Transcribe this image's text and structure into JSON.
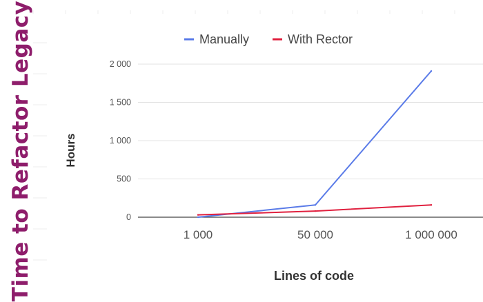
{
  "page_title": "Time to Refactor Legacy",
  "colors": {
    "title": "#8e1d6b",
    "manually": "#5a7be8",
    "with_rector": "#e0213f",
    "grid": "#e3e3e3",
    "axis": "#444444",
    "tick_text": "#555555",
    "label_text": "#333333",
    "legend_text": "#444444"
  },
  "chart_data": {
    "type": "line",
    "categories": [
      "1 000",
      "50 000",
      "1 000 000"
    ],
    "series": [
      {
        "name": "Manually",
        "values": [
          0,
          160,
          1910
        ]
      },
      {
        "name": "With Rector",
        "values": [
          30,
          80,
          160
        ]
      }
    ],
    "xlabel": "Lines of code",
    "ylabel": "Hours",
    "ylim": [
      0,
      2000
    ],
    "yticks": [
      0,
      500,
      1000,
      1500,
      2000
    ],
    "ytick_labels": [
      "0",
      "500",
      "1 000",
      "1 500",
      "2 000"
    ],
    "grid": true,
    "legend_position": "top"
  }
}
